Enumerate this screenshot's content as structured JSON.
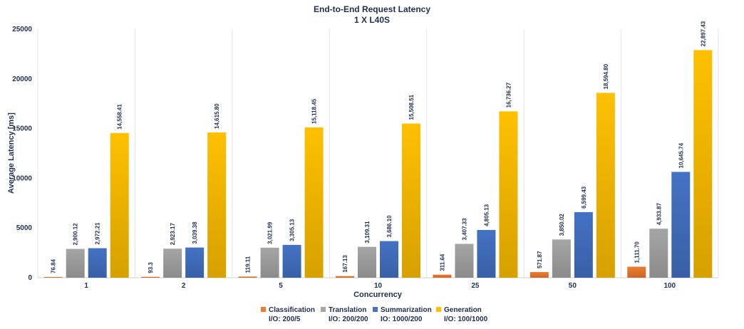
{
  "chart_data": {
    "type": "bar",
    "title": "End-to-End Request Latency",
    "subtitle": "1 X L40S",
    "xlabel": "Concurrency",
    "ylabel": "Average Latency [ms]",
    "ylim": [
      0,
      25000
    ],
    "yticks": [
      0,
      5000,
      10000,
      15000,
      20000,
      25000
    ],
    "grid": "vertical category separators",
    "legend_position": "bottom",
    "categories": [
      "1",
      "2",
      "5",
      "10",
      "25",
      "50",
      "100"
    ],
    "series": [
      {
        "name": "Classification",
        "io": "I/O: 200/5",
        "color": "#ed7d31",
        "values": [
          76.84,
          93.3,
          119.11,
          167.13,
          311.64,
          571.87,
          1111.7
        ],
        "labels": [
          "76.84",
          "93.3",
          "119.11",
          "167.13",
          "311.64",
          "571.87",
          "1,111.70"
        ]
      },
      {
        "name": "Translation",
        "io": "I/O: 200/200",
        "color": "#a5a5a5",
        "values": [
          2900.12,
          2923.17,
          3021.99,
          3109.31,
          3407.33,
          3850.02,
          4933.87
        ],
        "labels": [
          "2,900.12",
          "2,923.17",
          "3,021.99",
          "3,109.31",
          "3,407.33",
          "3,850.02",
          "4,933.87"
        ]
      },
      {
        "name": "Summarization",
        "io": "IO: 1000/200",
        "color": "#4472c4",
        "values": [
          2972.21,
          3039.38,
          3305.13,
          3686.1,
          4805.13,
          6599.43,
          10645.74
        ],
        "labels": [
          "2,972.21",
          "3,039.38",
          "3,305.13",
          "3,686.10",
          "4,805.13",
          "6,599.43",
          "10,645.74"
        ]
      },
      {
        "name": "Generation",
        "io": "I/O: 100/1000",
        "color": "#ffc000",
        "values": [
          14558.41,
          14615.8,
          15118.45,
          15508.51,
          16736.27,
          18594.8,
          22897.43
        ],
        "labels": [
          "14,558.41",
          "14,615.80",
          "15,118.45",
          "15,508.51",
          "16,736.27",
          "18,594.80",
          "22,897.43"
        ]
      }
    ]
  }
}
